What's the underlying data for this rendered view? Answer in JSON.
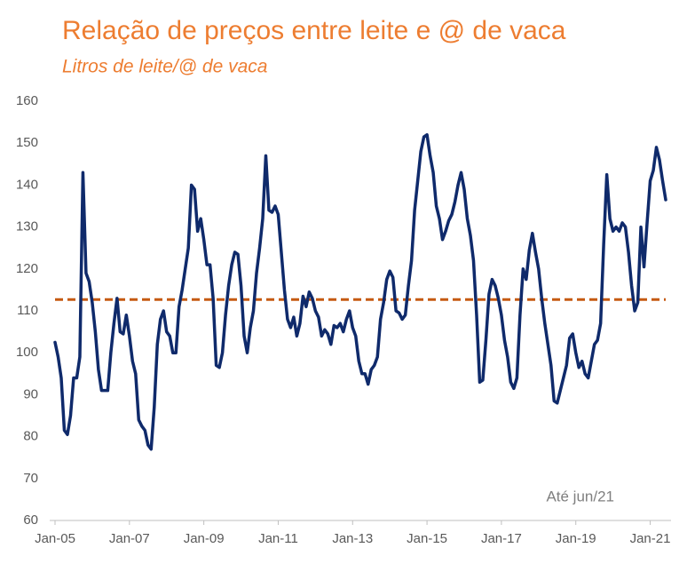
{
  "chart_data": {
    "type": "line",
    "title": "Relação de preços entre leite e @ de vaca",
    "subtitle": "Litros de leite/@ de vaca",
    "annotation": "Até jun/21",
    "x": [
      "2005-01",
      "2005-02",
      "2005-03",
      "2005-04",
      "2005-05",
      "2005-06",
      "2005-07",
      "2005-08",
      "2005-09",
      "2005-10",
      "2005-11",
      "2005-12",
      "2006-01",
      "2006-02",
      "2006-03",
      "2006-04",
      "2006-05",
      "2006-06",
      "2006-07",
      "2006-08",
      "2006-09",
      "2006-10",
      "2006-11",
      "2006-12",
      "2007-01",
      "2007-02",
      "2007-03",
      "2007-04",
      "2007-05",
      "2007-06",
      "2007-07",
      "2007-08",
      "2007-09",
      "2007-10",
      "2007-11",
      "2007-12",
      "2008-01",
      "2008-02",
      "2008-03",
      "2008-04",
      "2008-05",
      "2008-06",
      "2008-07",
      "2008-08",
      "2008-09",
      "2008-10",
      "2008-11",
      "2008-12",
      "2009-01",
      "2009-02",
      "2009-03",
      "2009-04",
      "2009-05",
      "2009-06",
      "2009-07",
      "2009-08",
      "2009-09",
      "2009-10",
      "2009-11",
      "2009-12",
      "2010-01",
      "2010-02",
      "2010-03",
      "2010-04",
      "2010-05",
      "2010-06",
      "2010-07",
      "2010-08",
      "2010-09",
      "2010-10",
      "2010-11",
      "2010-12",
      "2011-01",
      "2011-02",
      "2011-03",
      "2011-04",
      "2011-05",
      "2011-06",
      "2011-07",
      "2011-08",
      "2011-09",
      "2011-10",
      "2011-11",
      "2011-12",
      "2012-01",
      "2012-02",
      "2012-03",
      "2012-04",
      "2012-05",
      "2012-06",
      "2012-07",
      "2012-08",
      "2012-09",
      "2012-10",
      "2012-11",
      "2012-12",
      "2013-01",
      "2013-02",
      "2013-03",
      "2013-04",
      "2013-05",
      "2013-06",
      "2013-07",
      "2013-08",
      "2013-09",
      "2013-10",
      "2013-11",
      "2013-12",
      "2014-01",
      "2014-02",
      "2014-03",
      "2014-04",
      "2014-05",
      "2014-06",
      "2014-07",
      "2014-08",
      "2014-09",
      "2014-10",
      "2014-11",
      "2014-12",
      "2015-01",
      "2015-02",
      "2015-03",
      "2015-04",
      "2015-05",
      "2015-06",
      "2015-07",
      "2015-08",
      "2015-09",
      "2015-10",
      "2015-11",
      "2015-12",
      "2016-01",
      "2016-02",
      "2016-03",
      "2016-04",
      "2016-05",
      "2016-06",
      "2016-07",
      "2016-08",
      "2016-09",
      "2016-10",
      "2016-11",
      "2016-12",
      "2017-01",
      "2017-02",
      "2017-03",
      "2017-04",
      "2017-05",
      "2017-06",
      "2017-07",
      "2017-08",
      "2017-09",
      "2017-10",
      "2017-11",
      "2017-12",
      "2018-01",
      "2018-02",
      "2018-03",
      "2018-04",
      "2018-05",
      "2018-06",
      "2018-07",
      "2018-08",
      "2018-09",
      "2018-10",
      "2018-11",
      "2018-12",
      "2019-01",
      "2019-02",
      "2019-03",
      "2019-04",
      "2019-05",
      "2019-06",
      "2019-07",
      "2019-08",
      "2019-09",
      "2019-10",
      "2019-11",
      "2019-12",
      "2020-01",
      "2020-02",
      "2020-03",
      "2020-04",
      "2020-05",
      "2020-06",
      "2020-07",
      "2020-08",
      "2020-09",
      "2020-10",
      "2020-11",
      "2020-12",
      "2021-01",
      "2021-02",
      "2021-03",
      "2021-04",
      "2021-05",
      "2021-06"
    ],
    "series": [
      {
        "color": "#0f2a6b",
        "values": [
          102.5,
          99,
          94,
          81.5,
          80.5,
          85,
          94,
          94,
          99,
          143,
          119,
          117,
          112,
          105,
          96,
          91,
          91,
          91,
          100,
          107,
          113,
          105,
          104.5,
          109,
          104,
          98,
          95,
          84,
          82.5,
          81.5,
          78,
          77,
          87,
          102,
          108,
          110,
          105,
          104,
          100,
          100,
          111,
          115,
          120,
          125,
          140,
          139,
          129,
          132,
          127,
          121,
          121,
          113,
          97,
          96.5,
          100,
          109,
          116,
          121,
          124,
          123.5,
          116,
          104,
          100,
          106,
          110,
          119,
          125,
          132,
          147,
          134,
          133.5,
          135,
          133,
          124,
          115,
          108,
          106,
          108.5,
          104,
          107,
          113.5,
          111,
          114.5,
          113,
          110,
          108.5,
          104,
          105.5,
          104.5,
          102,
          106.5,
          106,
          107,
          105,
          108,
          110,
          106,
          104,
          98,
          95,
          95,
          92.5,
          96,
          97,
          99,
          108,
          112,
          117.5,
          119.5,
          118,
          110,
          109.5,
          108,
          109,
          116,
          122,
          134,
          141,
          148,
          151.5,
          152,
          147,
          143,
          135,
          132,
          127,
          129,
          131.5,
          133,
          136,
          140,
          143,
          139,
          132,
          128,
          122,
          109,
          93,
          93.5,
          103,
          114,
          117.5,
          116,
          113,
          109,
          103,
          99,
          93,
          91.5,
          94,
          109,
          120,
          117.5,
          124.5,
          128.5,
          124,
          120,
          113,
          107,
          102,
          97,
          88.5,
          88,
          91,
          94,
          97,
          103.5,
          104.5,
          100,
          96.5,
          98,
          95,
          94,
          98,
          102,
          103,
          107,
          126,
          142.5,
          132,
          129,
          130,
          129,
          131,
          130,
          124,
          116,
          110,
          112,
          130,
          120.5,
          131,
          141,
          143.5,
          149,
          146,
          141,
          136.5
        ]
      }
    ],
    "reference_line": {
      "value": 112.7,
      "color": "#c55a11",
      "style": "dashed"
    },
    "xlim": [
      "2005-01",
      "2021-06"
    ],
    "xticks": [
      {
        "value": "2005-01",
        "label": "Jan-05"
      },
      {
        "value": "2007-01",
        "label": "Jan-07"
      },
      {
        "value": "2009-01",
        "label": "Jan-09"
      },
      {
        "value": "2011-01",
        "label": "Jan-11"
      },
      {
        "value": "2013-01",
        "label": "Jan-13"
      },
      {
        "value": "2015-01",
        "label": "Jan-15"
      },
      {
        "value": "2017-01",
        "label": "Jan-17"
      },
      {
        "value": "2019-01",
        "label": "Jan-19"
      },
      {
        "value": "2021-01",
        "label": "Jan-21"
      }
    ],
    "ylim": [
      60,
      160
    ],
    "yticks": [
      60,
      70,
      80,
      90,
      100,
      110,
      120,
      130,
      140,
      150,
      160
    ],
    "grid": false
  }
}
